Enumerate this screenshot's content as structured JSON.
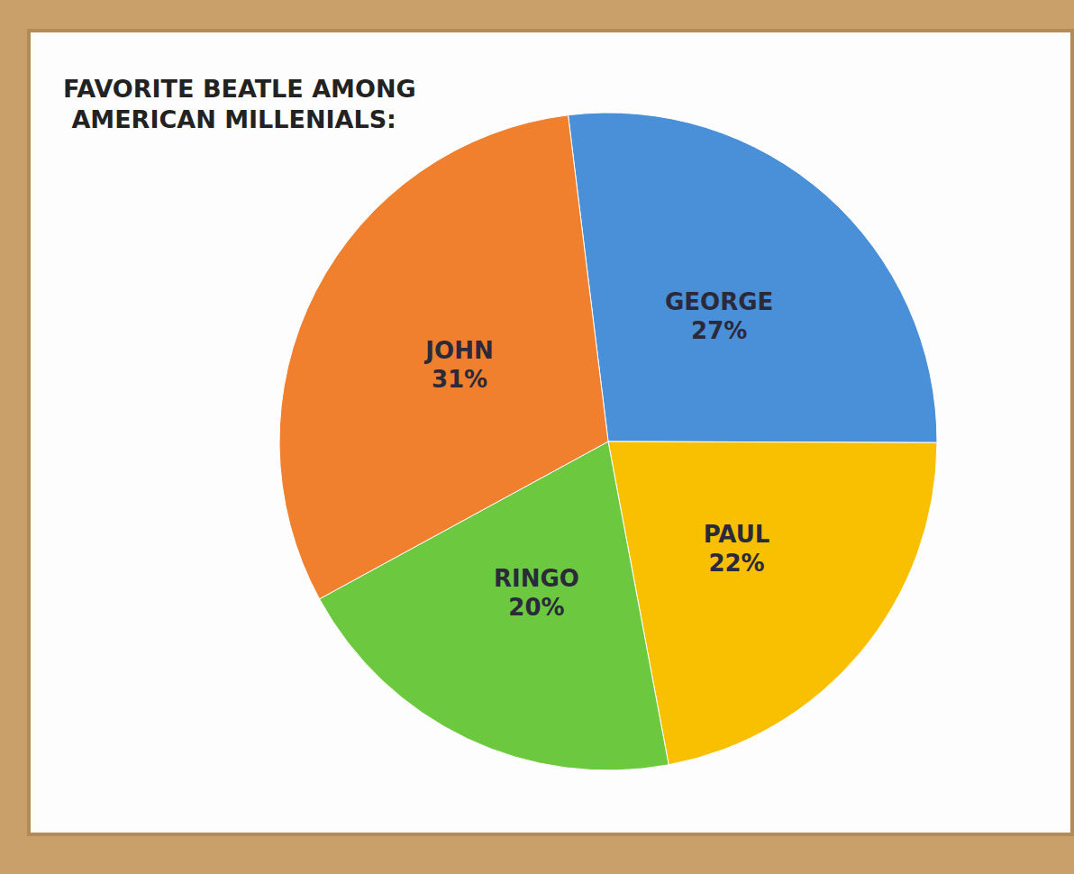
{
  "chart_data": {
    "type": "pie",
    "title": "FAVORITE BEATLE AMONG AMERICAN MILLENIALS:",
    "categories": [
      "GEORGE",
      "PAUL",
      "RINGO",
      "JOHN"
    ],
    "values": [
      27,
      22,
      20,
      31
    ],
    "value_labels": [
      "27%",
      "22%",
      "20%",
      "31%"
    ],
    "colors": [
      "#4a90d9",
      "#f8c000",
      "#6cc93f",
      "#f07f2e"
    ],
    "data_labels": true
  }
}
